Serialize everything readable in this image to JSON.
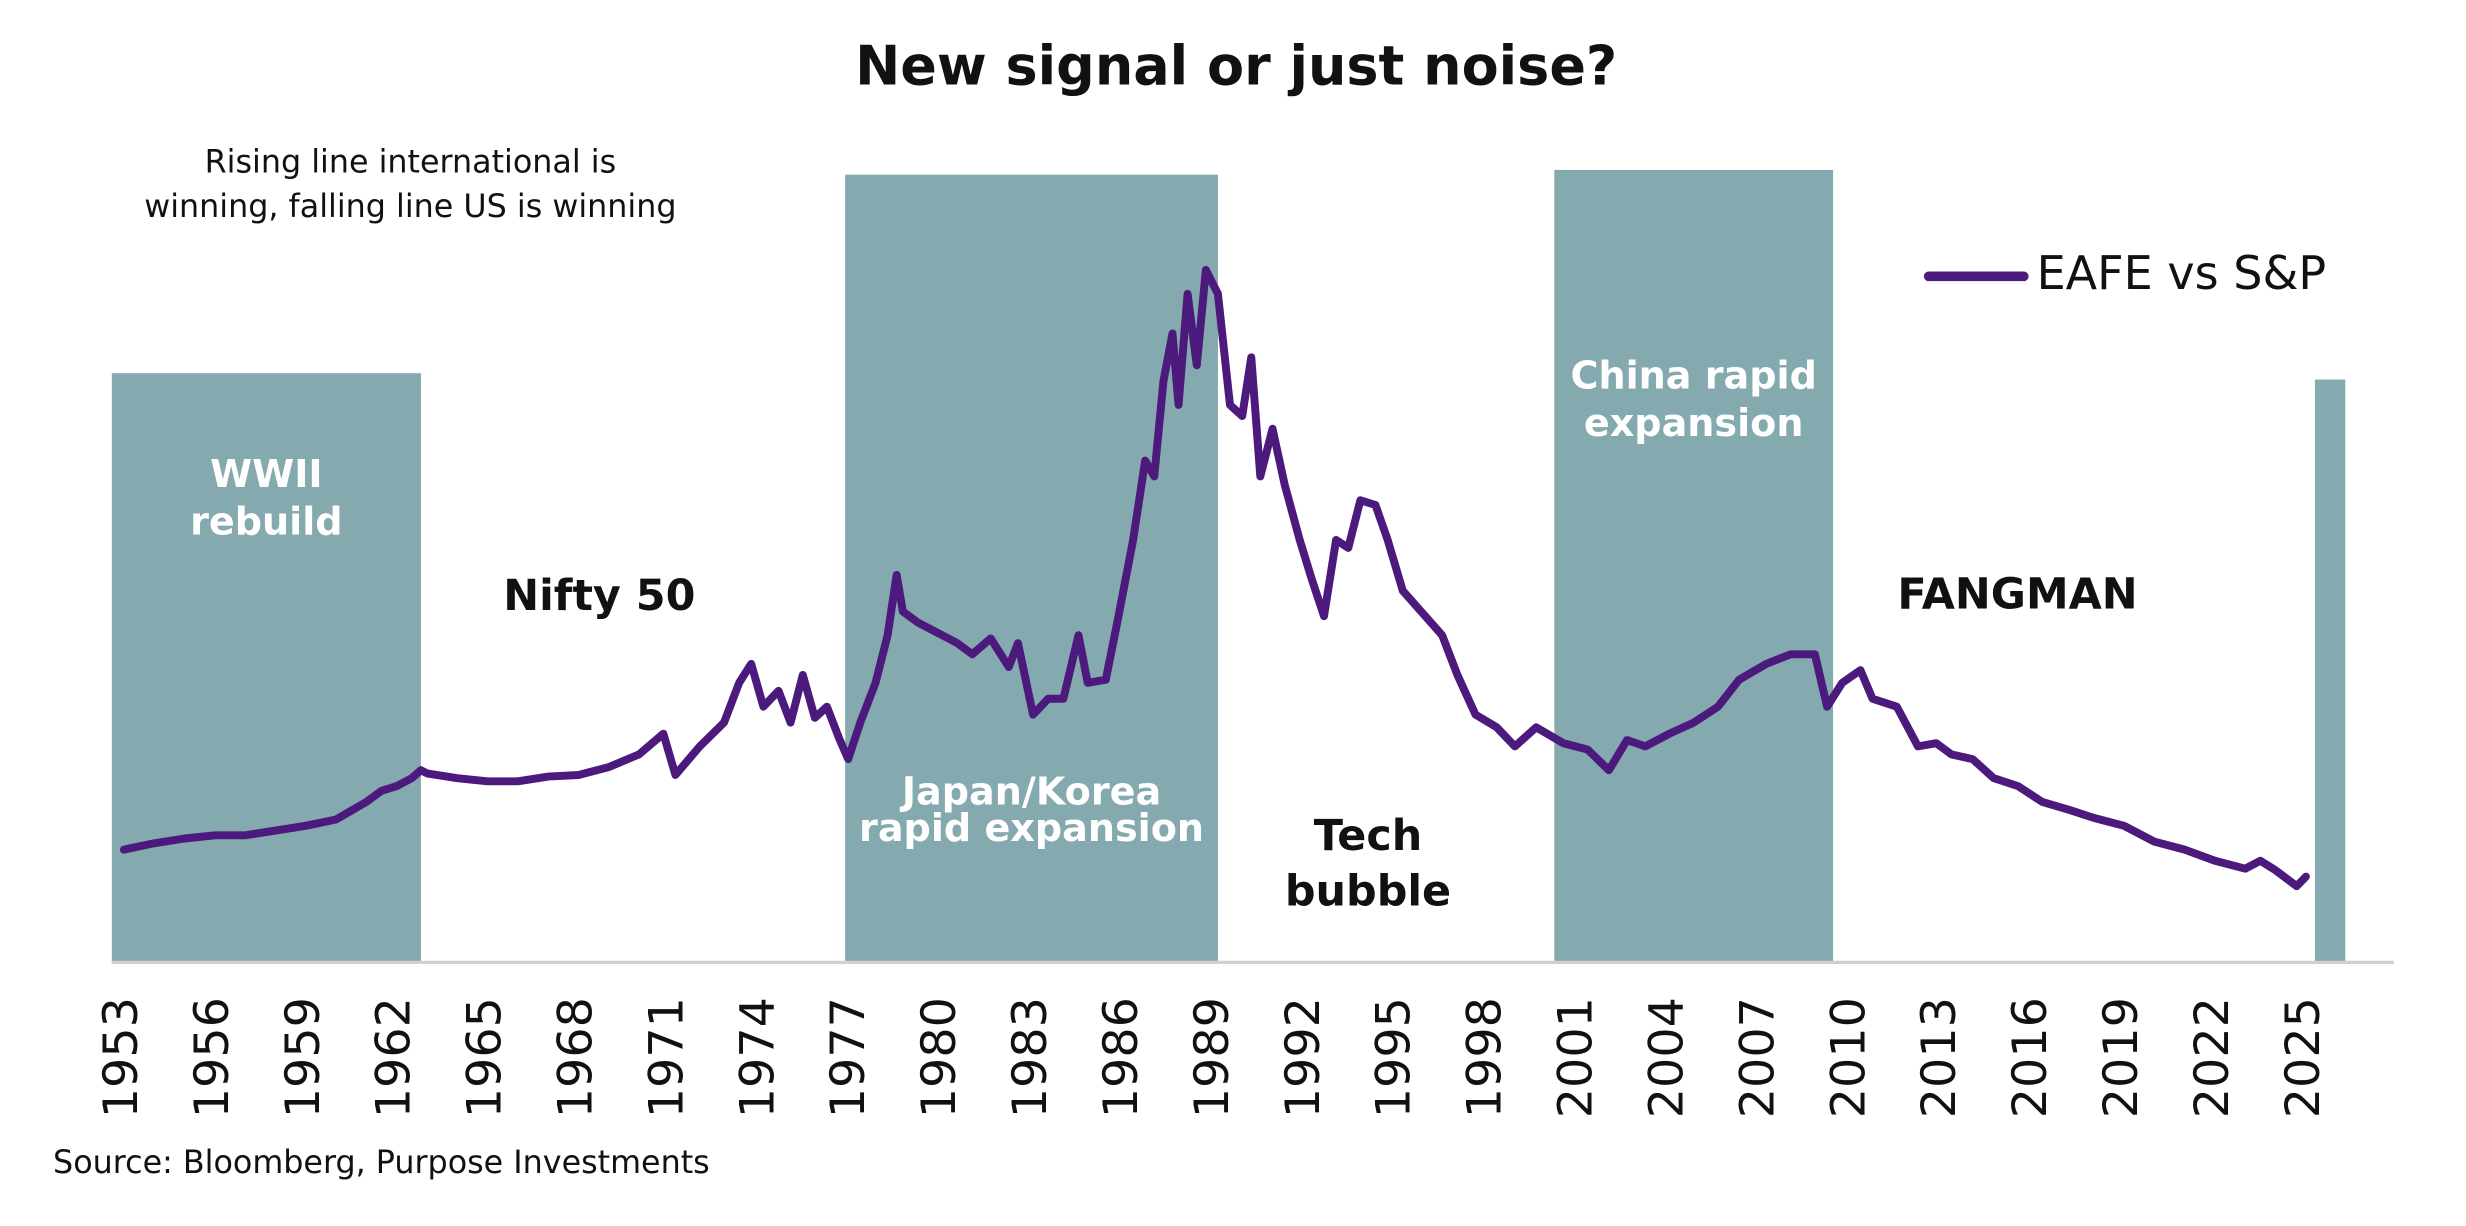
{
  "chart_data": {
    "type": "line",
    "title": "New signal or just noise?",
    "note": [
      "Rising line international is",
      "winning, falling line US is winning"
    ],
    "source": "Source: Bloomberg, Purpose Investments",
    "legend": "top-right",
    "xlim": [
      1952.6,
      2027.8
    ],
    "xticks": [
      1953,
      1956,
      1959,
      1962,
      1965,
      1968,
      1971,
      1974,
      1977,
      1980,
      1983,
      1986,
      1989,
      1992,
      1995,
      1998,
      2001,
      2004,
      2007,
      2010,
      2013,
      2016,
      2019,
      2022,
      2025
    ],
    "ylim": [
      0,
      100
    ],
    "shade_color": "#84a9ae",
    "shaded_periods": [
      {
        "start": 1952.6,
        "end": 1962.8,
        "label": [
          "WWII",
          "rebuild"
        ]
      },
      {
        "start": 1976.8,
        "end": 1989.1,
        "label": [
          "Japan/Korea",
          "rapid expansion"
        ]
      },
      {
        "start": 2000.2,
        "end": 2009.4,
        "label": [
          "China rapid",
          "expansion"
        ]
      },
      {
        "start": 2025.3,
        "end": 2026.3
      }
    ],
    "annotations": [
      {
        "label": [
          "Nifty 50"
        ]
      },
      {
        "label": [
          "Tech",
          "bubble"
        ]
      },
      {
        "label": [
          "FANGMAN"
        ]
      }
    ],
    "x": [
      1953,
      1954,
      1955,
      1956,
      1957,
      1958,
      1959,
      1960,
      1961,
      1961.5,
      1962,
      1962.5,
      1962.8,
      1963,
      1964,
      1965,
      1966,
      1967,
      1968,
      1969,
      1970,
      1970.8,
      1971.2,
      1972,
      1972.8,
      1973.3,
      1973.7,
      1974.1,
      1974.6,
      1975,
      1975.4,
      1975.8,
      1976.2,
      1976.6,
      1976.9,
      1977.3,
      1977.8,
      1978.2,
      1978.5,
      1978.7,
      1979.2,
      1980,
      1980.5,
      1981,
      1981.6,
      1982.2,
      1982.5,
      1983,
      1983.5,
      1984,
      1984.5,
      1984.8,
      1985.4,
      1985.8,
      1986.3,
      1986.7,
      1987,
      1987.3,
      1987.6,
      1987.8,
      1988.1,
      1988.4,
      1988.7,
      1989.1,
      1989.5,
      1989.9,
      1990.2,
      1990.5,
      1990.9,
      1991.3,
      1991.8,
      1992.2,
      1992.6,
      1993,
      1993.4,
      1993.8,
      1994.3,
      1994.7,
      1995.2,
      1995.8,
      1996.5,
      1997,
      1997.6,
      1998.3,
      1998.9,
      1999.6,
      2000.5,
      2001.3,
      2002,
      2002.6,
      2003.2,
      2004,
      2004.8,
      2005.6,
      2006.3,
      2007.2,
      2008,
      2008.8,
      2009.2,
      2009.7,
      2010.3,
      2010.7,
      2011.5,
      2012.2,
      2012.8,
      2013.3,
      2014,
      2014.7,
      2015.5,
      2016.3,
      2017.2,
      2018,
      2019,
      2020,
      2021,
      2022,
      2023,
      2023.5,
      2024,
      2024.7,
      2025
    ],
    "series": [
      {
        "name": "EAFE vs S&P",
        "color": "#4b1a7c",
        "values": [
          14,
          14.8,
          15.4,
          15.8,
          15.8,
          16.4,
          17,
          17.8,
          20,
          21.4,
          22,
          23,
          24,
          23.6,
          23,
          22.6,
          22.6,
          23.2,
          23.4,
          24.4,
          26,
          28.6,
          23.4,
          27,
          30,
          35,
          37.4,
          32,
          34,
          30,
          36,
          30.6,
          32,
          28,
          25.4,
          30,
          35,
          41,
          48.6,
          44,
          42.6,
          41,
          40,
          38.6,
          40.6,
          37,
          40,
          31,
          33,
          33,
          41,
          35,
          35.4,
          43,
          53,
          63,
          61,
          73,
          79,
          70,
          84,
          75,
          87,
          84,
          70,
          68.6,
          76,
          61,
          67,
          60,
          53,
          48,
          43.4,
          53,
          52,
          58,
          57.4,
          53,
          46.6,
          44,
          41,
          36,
          31,
          29.4,
          27,
          29.4,
          27.4,
          26.6,
          24,
          27.8,
          27,
          28.6,
          30,
          32,
          35.4,
          37.4,
          38.6,
          38.6,
          32,
          35,
          36.6,
          33,
          32,
          27,
          27.4,
          26,
          25.4,
          23,
          22,
          20,
          19,
          18,
          17,
          15,
          14,
          12.6,
          11.6,
          12.6,
          11.4,
          9.4,
          10.6
        ]
      }
    ]
  }
}
